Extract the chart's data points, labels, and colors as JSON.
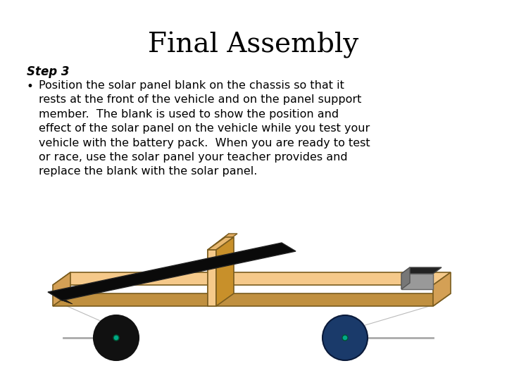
{
  "title": "Final Assembly",
  "step_label": "Step 3",
  "bullet_text": "Position the solar panel blank on the chassis so that it\nrests at the front of the vehicle and on the panel support\nmember.  The blank is used to show the position and\neffect of the solar panel on the vehicle while you test your\nvehicle with the battery pack.  When you are ready to test\nor race, use the solar panel your teacher provides and\nreplace the blank with the solar panel.",
  "bg_color": "#ffffff",
  "title_color": "#000000",
  "step_color": "#000000",
  "bullet_color": "#000000",
  "chassis_color": "#f5c98a",
  "chassis_edge": "#7a5c1e",
  "chassis_side_color": "#d4a055",
  "chassis_bottom_color": "#c09040",
  "panel_color": "#0a0a0a",
  "wheel_left_color": "#111111",
  "wheel_right_color": "#1a3a6a",
  "wheel_edge": "#111111",
  "support_color": "#f5c98a",
  "support_edge": "#7a5c1e",
  "motor_top_color": "#333333",
  "motor_side_color": "#888888",
  "axle_color": "#aaaaaa",
  "hub_color": "#00aa88"
}
